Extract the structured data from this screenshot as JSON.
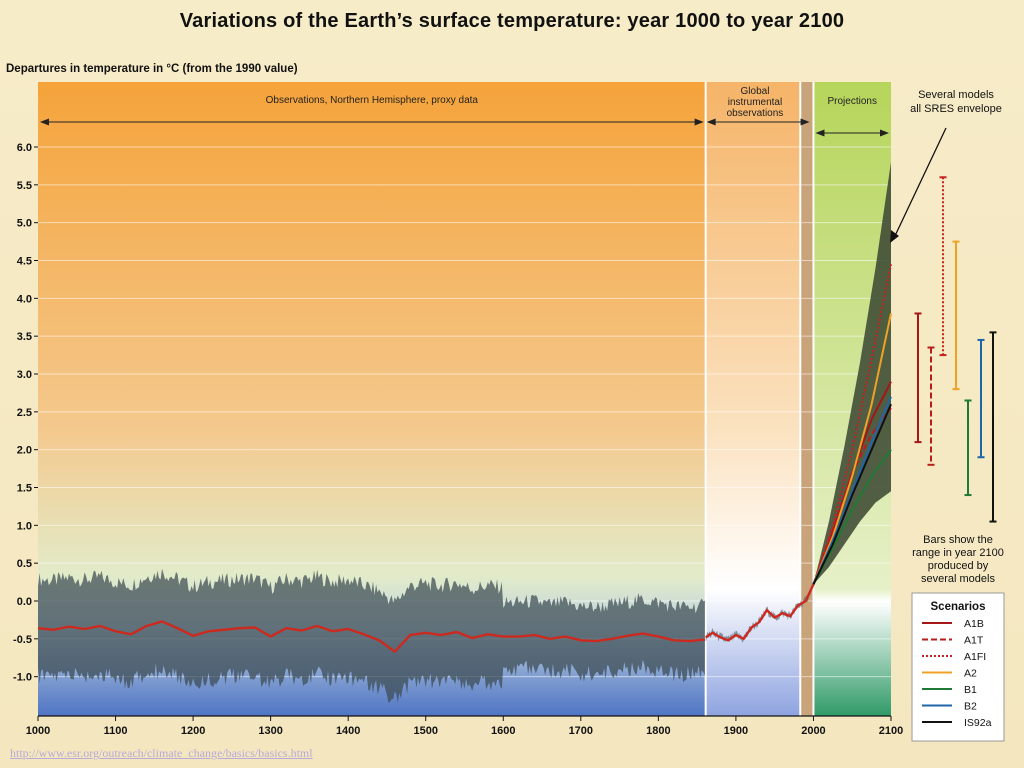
{
  "title": "Variations of the Earth’s surface temperature: year 1000 to year 2100",
  "source_url": "http://www.esr.org/outreach/climate_change/basics/basics.html",
  "colors": {
    "observations": "#f5a640",
    "instrumental": "#f8d9a8",
    "projections": "#c4dd66",
    "proxy_band": "#3c4b52",
    "proxy_series": "#cc2a1e",
    "envelope": "#3d4a34",
    "A1B": "#a51616",
    "A1T": "#b81d1d",
    "A1FI": "#c62020",
    "A2": "#f0a224",
    "B1": "#1e7a34",
    "B2": "#1f66a8",
    "IS92a": "#111111"
  },
  "chart_data": {
    "type": "line",
    "title": "Variations of the Earth’s surface temperature: year 1000 to year 2100",
    "ylabel": "Departures in temperature in °C (from the 1990 value)",
    "xlabel": "",
    "xlim": [
      1000,
      2100
    ],
    "ylim": [
      -1.3,
      6.8
    ],
    "x_ticks": [
      "1000",
      "1100",
      "1200",
      "1300",
      "1400",
      "1500",
      "1600",
      "1700",
      "1800",
      "1900",
      "2000",
      "2100"
    ],
    "y_ticks": [
      "-1.0",
      "-0.5",
      "0.0",
      "0.5",
      "1.0",
      "1.5",
      "2.0",
      "2.5",
      "3.0",
      "3.5",
      "4.0",
      "4.5",
      "5.0",
      "5.5",
      "6.0"
    ],
    "grid": true,
    "regions": [
      {
        "label": "Observations, Northern Hemisphere, proxy data",
        "x_start": 1000,
        "x_end": 1861
      },
      {
        "label": "Global instrumental observations",
        "x_start": 1861,
        "x_end": 2000
      },
      {
        "label": "Projections",
        "x_start": 2000,
        "x_end": 2100
      }
    ],
    "proxy_series": {
      "name": "",
      "x": [
        1000,
        1020,
        1040,
        1060,
        1080,
        1100,
        1120,
        1140,
        1160,
        1180,
        1200,
        1220,
        1240,
        1260,
        1280,
        1300,
        1320,
        1340,
        1360,
        1380,
        1400,
        1420,
        1440,
        1460,
        1480,
        1500,
        1520,
        1540,
        1560,
        1580,
        1600,
        1620,
        1640,
        1660,
        1680,
        1700,
        1720,
        1740,
        1760,
        1780,
        1800,
        1820,
        1840,
        1860
      ],
      "y": [
        -0.36,
        -0.38,
        -0.34,
        -0.37,
        -0.33,
        -0.4,
        -0.44,
        -0.33,
        -0.27,
        -0.36,
        -0.46,
        -0.4,
        -0.38,
        -0.36,
        -0.35,
        -0.47,
        -0.36,
        -0.39,
        -0.33,
        -0.4,
        -0.37,
        -0.44,
        -0.52,
        -0.67,
        -0.45,
        -0.42,
        -0.45,
        -0.41,
        -0.49,
        -0.44,
        -0.47,
        -0.47,
        -0.45,
        -0.5,
        -0.47,
        -0.52,
        -0.53,
        -0.5,
        -0.46,
        -0.43,
        -0.47,
        -0.52,
        -0.53,
        -0.51
      ]
    },
    "instrumental_series": {
      "name": "",
      "x": [
        1861,
        1870,
        1880,
        1890,
        1900,
        1910,
        1920,
        1930,
        1940,
        1950,
        1960,
        1970,
        1980,
        1990,
        2000
      ],
      "y": [
        -0.48,
        -0.42,
        -0.48,
        -0.52,
        -0.45,
        -0.5,
        -0.35,
        -0.28,
        -0.12,
        -0.22,
        -0.16,
        -0.2,
        -0.06,
        0.0,
        0.22
      ]
    },
    "envelope": {
      "x": [
        2000,
        2020,
        2040,
        2060,
        2080,
        2100
      ],
      "lower": [
        0.22,
        0.45,
        0.75,
        1.05,
        1.3,
        1.45
      ],
      "upper": [
        0.22,
        1.05,
        2.05,
        3.15,
        4.4,
        5.8
      ]
    },
    "scenarios": [
      {
        "name": "A1B",
        "style": "solid",
        "x": [
          2000,
          2025,
          2050,
          2075,
          2100
        ],
        "y": [
          0.22,
          0.9,
          1.7,
          2.4,
          2.9
        ]
      },
      {
        "name": "A1T",
        "style": "dashed",
        "x": [
          2000,
          2025,
          2050,
          2075,
          2100
        ],
        "y": [
          0.22,
          0.95,
          1.7,
          2.2,
          2.55
        ]
      },
      {
        "name": "A1FI",
        "style": "dotted",
        "x": [
          2000,
          2025,
          2050,
          2075,
          2100
        ],
        "y": [
          0.22,
          1.0,
          2.0,
          3.2,
          4.45
        ]
      },
      {
        "name": "A2",
        "style": "solid",
        "x": [
          2000,
          2025,
          2050,
          2075,
          2100
        ],
        "y": [
          0.22,
          0.85,
          1.65,
          2.6,
          3.8
        ]
      },
      {
        "name": "B1",
        "style": "solid",
        "x": [
          2000,
          2025,
          2050,
          2075,
          2100
        ],
        "y": [
          0.22,
          0.7,
          1.2,
          1.65,
          2.0
        ]
      },
      {
        "name": "B2",
        "style": "solid",
        "x": [
          2000,
          2025,
          2050,
          2075,
          2100
        ],
        "y": [
          0.22,
          0.8,
          1.45,
          2.1,
          2.7
        ]
      },
      {
        "name": "IS92a",
        "style": "solid",
        "x": [
          2000,
          2025,
          2050,
          2075,
          2100
        ],
        "y": [
          0.22,
          0.75,
          1.4,
          2.0,
          2.6
        ]
      }
    ],
    "range_bars_2100": [
      {
        "name": "A1B",
        "low": 2.1,
        "high": 3.8,
        "style": "solid"
      },
      {
        "name": "A1T",
        "low": 1.8,
        "high": 3.35,
        "style": "dashed"
      },
      {
        "name": "A1FI",
        "low": 3.25,
        "high": 5.6,
        "style": "dotted"
      },
      {
        "name": "A2",
        "low": 2.8,
        "high": 4.75,
        "style": "solid"
      },
      {
        "name": "B1",
        "low": 1.4,
        "high": 2.65,
        "style": "solid"
      },
      {
        "name": "B2",
        "low": 1.9,
        "high": 3.45,
        "style": "solid"
      },
      {
        "name": "IS92a",
        "low": 1.05,
        "high": 3.55,
        "style": "solid"
      }
    ],
    "annotations": {
      "envelope_note": [
        "Several models",
        "all SRES envelope"
      ],
      "bars_note": [
        "Bars show the",
        "range in year 2100",
        "produced by",
        "several models"
      ],
      "region_obs": [
        "Observations, Northern Hemisphere, proxy data"
      ],
      "region_inst": [
        "Global",
        "instrumental",
        "observations"
      ],
      "region_proj": [
        "Projections"
      ]
    },
    "legend": {
      "title": "Scenarios",
      "position": "bottom-right",
      "entries": [
        "A1B",
        "A1T",
        "A1FI",
        "A2",
        "B1",
        "B2",
        "IS92a"
      ]
    }
  }
}
